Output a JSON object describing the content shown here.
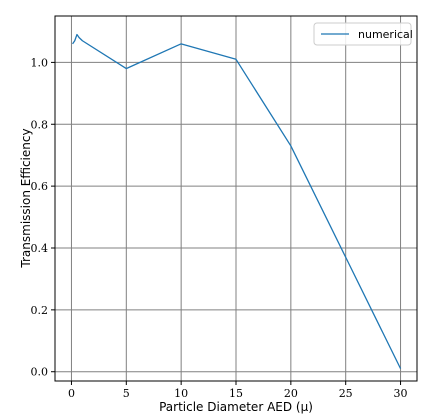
{
  "chart_data": {
    "type": "line",
    "xlabel": "Particle Diameter AED (μ)",
    "ylabel": "Transmission Efficiency",
    "xlim": [
      -1.5,
      31.5
    ],
    "ylim": [
      -0.03,
      1.15
    ],
    "xticks": [
      0,
      5,
      10,
      15,
      20,
      25,
      30
    ],
    "yticks": [
      0.0,
      0.2,
      0.4,
      0.6,
      0.8,
      1.0
    ],
    "xtick_labels": [
      "0",
      "5",
      "10",
      "15",
      "20",
      "25",
      "30"
    ],
    "ytick_labels": [
      "0.0",
      "0.2",
      "0.4",
      "0.6",
      "0.8",
      "1.0"
    ],
    "grid": true,
    "legend_position": "top-right",
    "series": [
      {
        "name": "numerical",
        "color": "#1f77b4",
        "x": [
          0.1,
          0.3,
          0.5,
          0.7,
          1.0,
          5.0,
          10.0,
          15.0,
          20.0,
          25.0,
          30.0
        ],
        "y": [
          1.06,
          1.07,
          1.09,
          1.08,
          1.07,
          0.98,
          1.06,
          1.01,
          0.73,
          0.37,
          0.01
        ]
      }
    ]
  }
}
